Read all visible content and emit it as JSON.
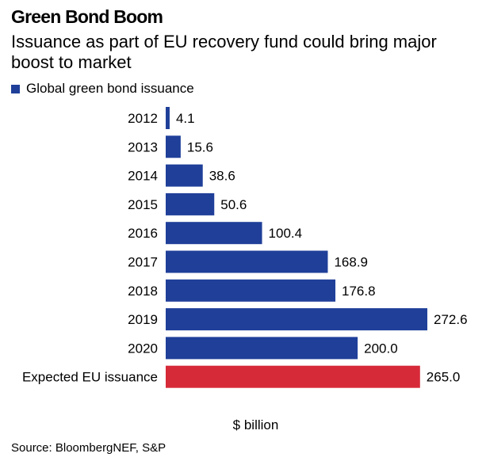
{
  "title": "Green Bond Boom",
  "subtitle": "Issuance as part of EU recovery fund could bring major boost to market",
  "legend_label": "Global green bond issuance",
  "unit_label": "$ billion",
  "source": "Source: BloombergNEF, S&P",
  "colors": {
    "series": "#1f3f99",
    "highlight": "#d62a38"
  },
  "chart_data": {
    "type": "bar",
    "orientation": "horizontal",
    "categories": [
      "2012",
      "2013",
      "2014",
      "2015",
      "2016",
      "2017",
      "2018",
      "2019",
      "2020",
      "Expected EU issuance"
    ],
    "values": [
      4.1,
      15.6,
      38.6,
      50.6,
      100.4,
      168.9,
      176.8,
      272.6,
      200.0,
      265.0
    ],
    "value_labels": [
      "4.1",
      "15.6",
      "38.6",
      "50.6",
      "100.4",
      "168.9",
      "176.8",
      "272.6",
      "200.0",
      "265.0"
    ],
    "highlight_index": 9,
    "series": [
      {
        "name": "Global green bond issuance"
      }
    ],
    "xlim": [
      0,
      272.6
    ],
    "grid": false,
    "legend": "top-left"
  }
}
